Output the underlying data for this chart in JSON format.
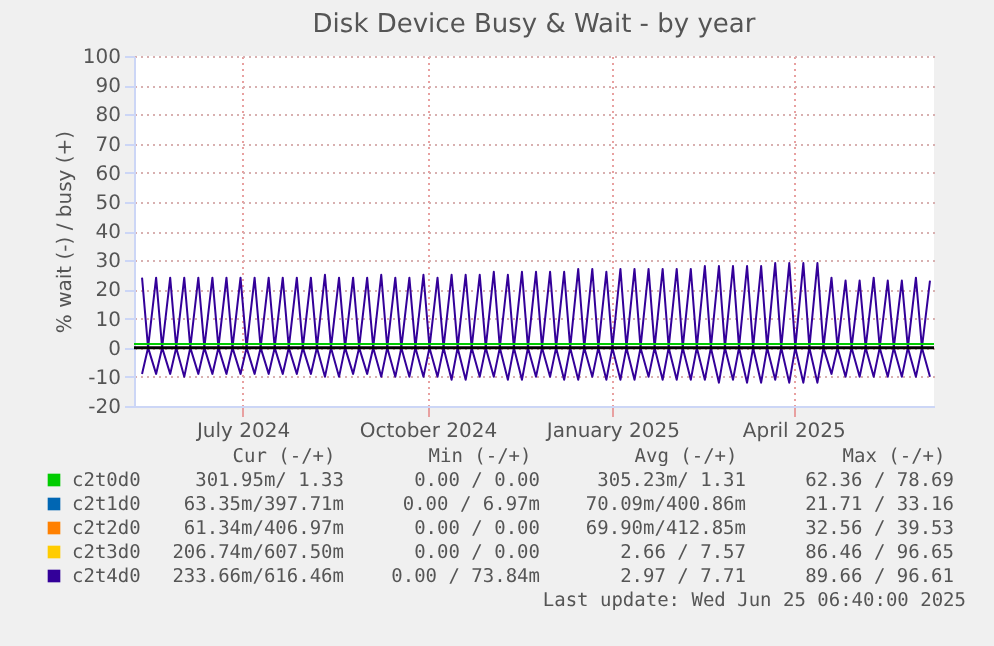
{
  "chart_data": {
    "type": "line",
    "title": "Disk Device Busy & Wait - by year",
    "ylabel": "% wait (-) / busy (+)",
    "xlim": [
      "2024-05-23",
      "2025-06-25"
    ],
    "xticks": [
      {
        "value": "2024-07-16",
        "label": "July 2024"
      },
      {
        "value": "2024-10-16",
        "label": "October 2024"
      },
      {
        "value": "2025-01-16",
        "label": "January 2025"
      },
      {
        "value": "2025-04-16",
        "label": "April 2025"
      }
    ],
    "ylim": [
      -20,
      100
    ],
    "yticks": [
      -20,
      -10,
      0,
      10,
      20,
      30,
      40,
      50,
      60,
      70,
      80,
      90,
      100
    ],
    "grid": true,
    "legend": "bottom",
    "ref_lines": [
      {
        "axis": "y",
        "value": 0,
        "color": "#000000"
      }
    ],
    "x": [
      "2024-05-27",
      "2024-05-30",
      "2024-06-03",
      "2024-06-06",
      "2024-06-10",
      "2024-06-13",
      "2024-06-17",
      "2024-06-20",
      "2024-06-24",
      "2024-06-27",
      "2024-07-01",
      "2024-07-04",
      "2024-07-08",
      "2024-07-11",
      "2024-07-15",
      "2024-07-18",
      "2024-07-22",
      "2024-07-25",
      "2024-07-29",
      "2024-08-01",
      "2024-08-05",
      "2024-08-08",
      "2024-08-12",
      "2024-08-15",
      "2024-08-19",
      "2024-08-22",
      "2024-08-26",
      "2024-08-29",
      "2024-09-02",
      "2024-09-05",
      "2024-09-09",
      "2024-09-12",
      "2024-09-16",
      "2024-09-19",
      "2024-09-23",
      "2024-09-26",
      "2024-09-30",
      "2024-10-03",
      "2024-10-07",
      "2024-10-10",
      "2024-10-14",
      "2024-10-17",
      "2024-10-21",
      "2024-10-24",
      "2024-10-28",
      "2024-10-31",
      "2024-11-04",
      "2024-11-07",
      "2024-11-11",
      "2024-11-14",
      "2024-11-18",
      "2024-11-21",
      "2024-11-25",
      "2024-11-28",
      "2024-12-02",
      "2024-12-05",
      "2024-12-09",
      "2024-12-12",
      "2024-12-16",
      "2024-12-19",
      "2024-12-23",
      "2024-12-26",
      "2024-12-30",
      "2025-01-02",
      "2025-01-06",
      "2025-01-09",
      "2025-01-13",
      "2025-01-16",
      "2025-01-20",
      "2025-01-23",
      "2025-01-27",
      "2025-01-30",
      "2025-02-03",
      "2025-02-06",
      "2025-02-10",
      "2025-02-13",
      "2025-02-17",
      "2025-02-20",
      "2025-02-24",
      "2025-02-27",
      "2025-03-03",
      "2025-03-06",
      "2025-03-10",
      "2025-03-13",
      "2025-03-17",
      "2025-03-20",
      "2025-03-24",
      "2025-03-27",
      "2025-03-31",
      "2025-04-03",
      "2025-04-07",
      "2025-04-10",
      "2025-04-14",
      "2025-04-17",
      "2025-04-21",
      "2025-04-24",
      "2025-04-28",
      "2025-05-01",
      "2025-05-05",
      "2025-05-08",
      "2025-05-12",
      "2025-05-15",
      "2025-05-19",
      "2025-05-22",
      "2025-05-26",
      "2025-05-29",
      "2025-06-02",
      "2025-06-05",
      "2025-06-09",
      "2025-06-12",
      "2025-06-16",
      "2025-06-19",
      "2025-06-23"
    ],
    "series": [
      {
        "name": "c2t0d0",
        "color": "#00cc00",
        "x": [
          "2024-05-23",
          "2025-06-25"
        ],
        "values": [
          1.3,
          1.3
        ]
      },
      {
        "name": "c2t1d0",
        "color": "#0066b3",
        "values": [
          null,
          null,
          null,
          null,
          null,
          null,
          null,
          null,
          null,
          null,
          null,
          null,
          null,
          null,
          null,
          null,
          null,
          null,
          null,
          null,
          null,
          null,
          null,
          null,
          null,
          null,
          null,
          null,
          null,
          null,
          null,
          null,
          null,
          null,
          null,
          null,
          null,
          null,
          null,
          null,
          null,
          null,
          null,
          null,
          null,
          null,
          null,
          null,
          null,
          null,
          null,
          null,
          null,
          null,
          null,
          null,
          null,
          null,
          null,
          null,
          null,
          null,
          null,
          null,
          null,
          null,
          null,
          null,
          null,
          null,
          null,
          null,
          null,
          null,
          null,
          null,
          null,
          null,
          null,
          null,
          null,
          null,
          null,
          null,
          null,
          null,
          null,
          null,
          null,
          null,
          null,
          null,
          null,
          null,
          null,
          null,
          null,
          null,
          null,
          null,
          null,
          null,
          null,
          null,
          null,
          null,
          null,
          null,
          null,
          null,
          null,
          null,
          null
        ]
      },
      {
        "name": "c2t2d0",
        "color": "#ff8000",
        "values": [
          null,
          null,
          null,
          null,
          null,
          null,
          null,
          null,
          null,
          null,
          null,
          null,
          null,
          null,
          null,
          null,
          null,
          null,
          null,
          null,
          null,
          null,
          null,
          null,
          null,
          null,
          null,
          null,
          null,
          null,
          null,
          null,
          null,
          null,
          null,
          null,
          null,
          null,
          null,
          null,
          null,
          null,
          null,
          null,
          null,
          null,
          null,
          null,
          null,
          null,
          null,
          null,
          null,
          null,
          null,
          null,
          null,
          null,
          null,
          null,
          null,
          null,
          null,
          null,
          null,
          null,
          null,
          null,
          null,
          null,
          null,
          null,
          null,
          null,
          null,
          null,
          null,
          null,
          null,
          null,
          null,
          null,
          null,
          null,
          null,
          null,
          null,
          null,
          null,
          null,
          null,
          null,
          null,
          null,
          null,
          null,
          null,
          null,
          null,
          null,
          null,
          null,
          null,
          null,
          null,
          null,
          null,
          null,
          null,
          null,
          null,
          null,
          null
        ]
      },
      {
        "name": "c2t3d0",
        "color": "#ffcc00",
        "values": [
          null,
          null,
          null,
          null,
          null,
          null,
          null,
          null,
          null,
          null,
          null,
          null,
          null,
          null,
          null,
          null,
          null,
          null,
          null,
          null,
          null,
          null,
          null,
          null,
          null,
          null,
          null,
          null,
          null,
          null,
          null,
          null,
          null,
          null,
          null,
          null,
          null,
          null,
          null,
          null,
          null,
          null,
          null,
          null,
          null,
          null,
          null,
          null,
          null,
          null,
          null,
          null,
          null,
          null,
          null,
          null,
          null,
          null,
          null,
          null,
          null,
          null,
          null,
          null,
          null,
          null,
          null,
          null,
          null,
          null,
          null,
          null,
          null,
          null,
          null,
          null,
          null,
          null,
          null,
          null,
          null,
          null,
          null,
          null,
          null,
          null,
          null,
          null,
          null,
          null,
          null,
          null,
          null,
          null,
          null,
          null,
          null,
          null,
          null,
          null,
          null,
          null,
          null,
          null,
          null,
          null,
          null,
          null,
          null,
          null,
          null,
          null,
          null
        ]
      },
      {
        "name": "c2t4d0",
        "color": "#330099",
        "values": [
          24,
          0,
          24,
          0,
          24,
          0,
          24,
          0,
          24,
          0,
          24,
          0,
          24,
          0,
          24,
          0,
          24,
          0,
          24,
          0,
          24,
          0,
          24,
          0,
          24,
          0,
          25,
          0,
          24,
          0,
          24,
          0,
          24,
          0,
          25,
          0,
          24,
          0,
          24,
          0,
          25,
          0,
          24,
          0,
          25,
          0,
          25,
          0,
          25,
          0,
          26,
          0,
          25,
          0,
          26,
          0,
          26,
          0,
          26,
          0,
          26,
          0,
          27,
          0,
          27,
          0,
          26,
          0,
          27,
          0,
          27,
          0,
          27,
          0,
          27,
          0,
          27,
          0,
          27,
          0,
          28,
          0,
          28,
          0,
          28,
          0,
          28,
          0,
          28,
          0,
          29,
          0,
          29,
          0,
          29,
          0,
          29,
          0,
          24,
          0,
          23,
          0,
          23,
          0,
          24,
          0,
          23,
          0,
          23,
          0,
          24,
          0,
          23
        ]
      },
      {
        "color": "#330099",
        "values": [
          -9,
          0,
          -9,
          0,
          -9,
          0,
          -10,
          0,
          -9,
          0,
          -9,
          0,
          -9,
          0,
          -9,
          0,
          -9,
          0,
          -9,
          0,
          -9,
          0,
          -9,
          0,
          -9,
          0,
          -10,
          0,
          -10,
          0,
          -9,
          0,
          -9,
          0,
          -10,
          0,
          -10,
          0,
          -10,
          0,
          -10,
          0,
          -10,
          0,
          -11,
          0,
          -11,
          0,
          -10,
          0,
          -10,
          0,
          -11,
          0,
          -11,
          0,
          -10,
          0,
          -10,
          0,
          -11,
          0,
          -11,
          0,
          -10,
          0,
          -11,
          0,
          -11,
          0,
          -11,
          0,
          -10,
          0,
          -11,
          0,
          -11,
          0,
          -11,
          0,
          -11,
          0,
          -12,
          0,
          -11,
          0,
          -12,
          0,
          -12,
          0,
          -11,
          0,
          -12,
          0,
          -12,
          0,
          -12,
          0,
          -9,
          0,
          -10,
          0,
          -10,
          0,
          -10,
          0,
          -10,
          0,
          -10,
          0,
          -10,
          0,
          -10
        ]
      }
    ],
    "annotations": [
      "Cur (-/+)",
      "Min (-/+)",
      "Avg (-/+)",
      "Max (-/+)",
      "301.95m/  1.33",
      "0.00 /  0.00",
      "305.23m/  1.31",
      "62.36 / 78.69",
      "63.35m/397.71m",
      "0.00 /  6.97m",
      "70.09m/400.86m",
      "21.71 / 33.16",
      "61.34m/406.97m",
      "0.00 /  0.00",
      "69.90m/412.85m",
      "32.56 / 39.53",
      "206.74m/607.50m",
      "0.00 /  0.00",
      "2.66 /  7.57",
      "86.46 / 96.65",
      "233.66m/616.46m",
      "0.00 / 73.84m",
      "2.97 /  7.71",
      "89.66 / 96.61",
      "Last update: Wed Jun 25 06:40:00 2025"
    ]
  }
}
